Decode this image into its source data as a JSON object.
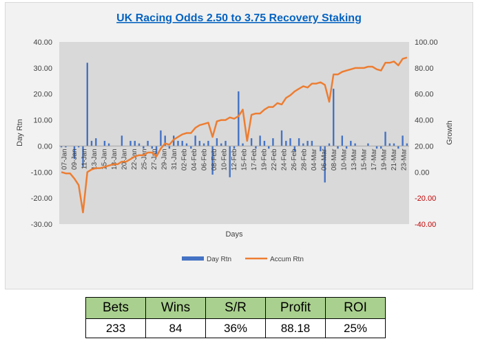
{
  "chart_data": {
    "type": "bar+line",
    "title": "UK Racing Odds 2.50 to 3.75 Recovery Staking",
    "xlabel": "Days",
    "ylabel": "Day Rtn",
    "ylabel_right": "Growth",
    "ylim": [
      -30,
      40
    ],
    "ylim_right": [
      -40,
      100
    ],
    "yticks": [
      "40.00",
      "30.00",
      "20.00",
      "10.00",
      "0.00",
      "-10.00",
      "-20.00",
      "-30.00"
    ],
    "yticks_right": [
      "100.00",
      "80.00",
      "60.00",
      "40.00",
      "20.00",
      "0.00",
      "-20.00",
      "-40.00"
    ],
    "grid": false,
    "legend_position": "bottom",
    "x_labels": [
      "07-Jan",
      "09-Jan",
      "11-Jan",
      "13-Jan",
      "15-Jan",
      "18-Jan",
      "20-Jan",
      "22-Jan",
      "25-Jan",
      "27-Jan",
      "29-Jan",
      "31-Jan",
      "02-Feb",
      "04-Feb",
      "06-Feb",
      "08-Feb",
      "10-Feb",
      "12-Feb",
      "15-Feb",
      "17-Feb",
      "19-Feb",
      "22-Feb",
      "24-Feb",
      "26-Feb",
      "28-Feb",
      "04-Mar",
      "06-Mar",
      "08-Mar",
      "10-Mar",
      "13-Mar",
      "15-Mar",
      "17-Mar",
      "19-Mar",
      "21-Mar",
      "23-Mar"
    ],
    "series": [
      {
        "name": "Day Rtn",
        "type": "bar",
        "color": "#4472c4",
        "axis": "left",
        "values": [
          -0.5,
          -0.5,
          0,
          -5,
          -0.5,
          -8,
          32,
          2,
          3,
          0,
          2,
          1,
          0,
          0,
          4,
          0,
          2,
          2,
          1,
          -1,
          2,
          -1,
          -3,
          6,
          4,
          -1,
          4,
          2,
          2,
          1,
          -1,
          4,
          2,
          1,
          2,
          -11,
          3,
          1,
          2,
          -12,
          -1,
          21,
          1,
          0,
          3,
          -1,
          4,
          2,
          -1,
          3,
          0,
          6,
          2,
          3,
          -2,
          3,
          1,
          2,
          2,
          0,
          -2,
          -14,
          1,
          22,
          -1,
          4,
          -1,
          2,
          1,
          0,
          0,
          1,
          0,
          -1,
          -1,
          5.5,
          1,
          1,
          -1,
          4,
          1
        ]
      },
      {
        "name": "Accum Rtn",
        "type": "line",
        "color": "#ed7d31",
        "axis": "right",
        "values": [
          0,
          -1,
          -1,
          -5,
          -10,
          -31,
          0,
          2,
          3,
          3,
          4,
          5,
          6,
          6,
          8,
          8,
          10,
          12,
          13,
          13,
          15,
          15,
          12,
          18,
          22,
          21,
          25,
          27,
          29,
          30,
          30,
          34,
          36,
          37,
          38,
          27,
          39,
          40,
          40,
          42,
          41,
          43,
          48,
          24,
          44,
          45,
          45,
          48,
          50,
          50,
          53,
          52,
          57,
          59,
          62,
          64,
          66,
          65,
          68,
          68,
          69,
          67,
          54,
          75,
          75,
          77,
          78,
          79,
          80,
          80,
          80,
          81,
          81,
          79,
          78,
          84,
          84,
          85,
          82,
          87,
          88
        ]
      }
    ]
  },
  "stats": {
    "headers": [
      "Bets",
      "Wins",
      "S/R",
      "Profit",
      "ROI"
    ],
    "values": [
      "233",
      "84",
      "36%",
      "88.18",
      "25%"
    ]
  }
}
